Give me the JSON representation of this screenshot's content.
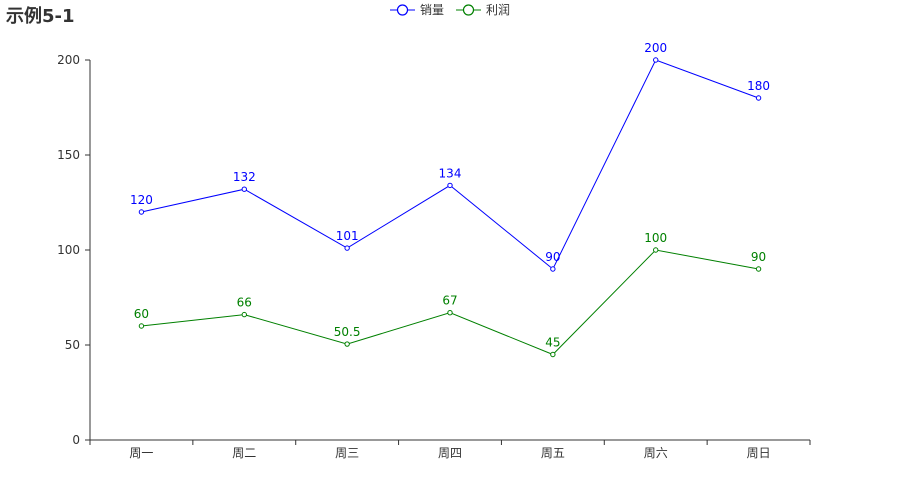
{
  "chart_data": {
    "type": "line",
    "title": "示例5-1",
    "categories": [
      "周一",
      "周二",
      "周三",
      "周四",
      "周五",
      "周六",
      "周日"
    ],
    "ylim": [
      0,
      200
    ],
    "yticks": [
      0,
      50,
      100,
      150,
      200
    ],
    "grid": false,
    "legend_position": "top-center",
    "series": [
      {
        "name": "销量",
        "color": "#0000ff",
        "values": [
          120,
          132,
          101,
          134,
          90,
          200,
          180
        ]
      },
      {
        "name": "利润",
        "color": "#008000",
        "values": [
          60,
          66,
          50.5,
          67,
          45,
          100,
          90
        ]
      }
    ]
  }
}
